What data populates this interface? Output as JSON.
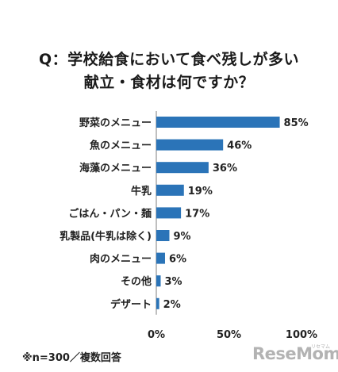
{
  "title": {
    "line1": "Q：学校給食において食べ残しが多い",
    "line2": "献立・食材は何ですか？"
  },
  "chart_data": {
    "type": "bar",
    "orientation": "horizontal",
    "categories": [
      "野菜のメニュー",
      "魚のメニュー",
      "海藻のメニュー",
      "牛乳",
      "ごはん・パン・麺",
      "乳製品(牛乳は除く)",
      "肉のメニュー",
      "その他",
      "デザート"
    ],
    "values": [
      85,
      46,
      36,
      19,
      17,
      9,
      6,
      3,
      2
    ],
    "value_labels": [
      "85%",
      "46%",
      "36%",
      "19%",
      "17%",
      "9%",
      "6%",
      "3%",
      "2%"
    ],
    "xlim": [
      0,
      100
    ],
    "xticks": [
      "0%",
      "50%",
      "100%"
    ],
    "grid": false,
    "bar_color": "#2b74b8"
  },
  "footnote": "※n=300／複数回答",
  "logo": {
    "text": "ReseMom",
    "sub": "リセマム"
  }
}
